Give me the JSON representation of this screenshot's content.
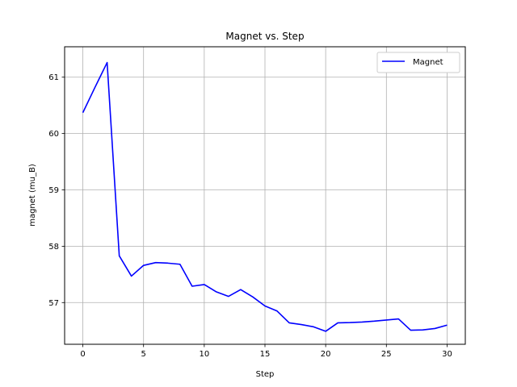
{
  "chart_data": {
    "type": "line",
    "title": "Magnet vs. Step",
    "xlabel": "Step",
    "ylabel": "magnet (mu_B)",
    "xlim": [
      -1.5,
      31.5
    ],
    "ylim": [
      56.26,
      61.54
    ],
    "xticks": [
      0,
      5,
      10,
      15,
      20,
      25,
      30
    ],
    "yticks": [
      57,
      58,
      59,
      60,
      61
    ],
    "grid": true,
    "legend_position": "top-right",
    "series": [
      {
        "name": "Magnet",
        "color": "#0000ff",
        "x": [
          0,
          1,
          2,
          3,
          4,
          5,
          6,
          7,
          8,
          9,
          10,
          11,
          12,
          13,
          14,
          15,
          16,
          17,
          18,
          19,
          20,
          21,
          22,
          23,
          24,
          25,
          26,
          27,
          28,
          29,
          30
        ],
        "y": [
          60.37,
          60.82,
          61.26,
          57.83,
          57.47,
          57.66,
          57.71,
          57.7,
          57.68,
          57.29,
          57.32,
          57.19,
          57.11,
          57.23,
          57.1,
          56.94,
          56.85,
          56.64,
          56.61,
          56.57,
          56.49,
          56.64,
          56.645,
          56.655,
          56.67,
          56.69,
          56.71,
          56.51,
          56.515,
          56.54,
          56.6
        ]
      }
    ]
  }
}
